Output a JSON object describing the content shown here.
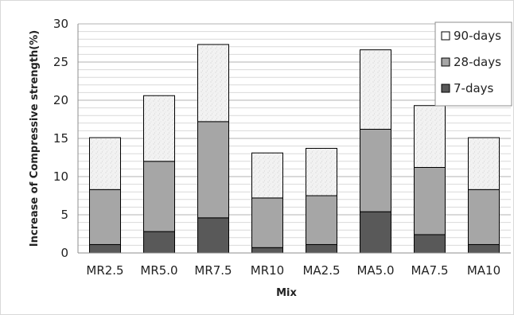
{
  "chart_data": {
    "type": "bar",
    "stacked": true,
    "title": "",
    "xlabel": "Mix",
    "ylabel": "Increase of Compressive strength(%)",
    "ylim": [
      0,
      30
    ],
    "yticks": [
      0,
      5,
      10,
      15,
      20,
      25,
      30
    ],
    "grid": true,
    "legend_position": "top-right",
    "categories": [
      "MR2.5",
      "MR5.0",
      "MR7.5",
      "MR10",
      "MA2.5",
      "MA5.0",
      "MA7.5",
      "MA10"
    ],
    "series": [
      {
        "name": "7-days",
        "color": "#595959",
        "values": [
          1.1,
          2.8,
          4.6,
          0.7,
          1.1,
          5.4,
          2.4,
          1.1
        ]
      },
      {
        "name": "28-days",
        "color": "#a6a6a6",
        "values": [
          7.2,
          9.2,
          12.6,
          6.5,
          6.4,
          10.8,
          8.8,
          7.2
        ]
      },
      {
        "name": "90-days",
        "color": "#eeeeee",
        "values": [
          6.8,
          8.6,
          10.1,
          5.9,
          6.2,
          10.4,
          8.1,
          6.8
        ]
      }
    ],
    "legend_order": [
      "90-days",
      "28-days",
      "7-days"
    ]
  }
}
